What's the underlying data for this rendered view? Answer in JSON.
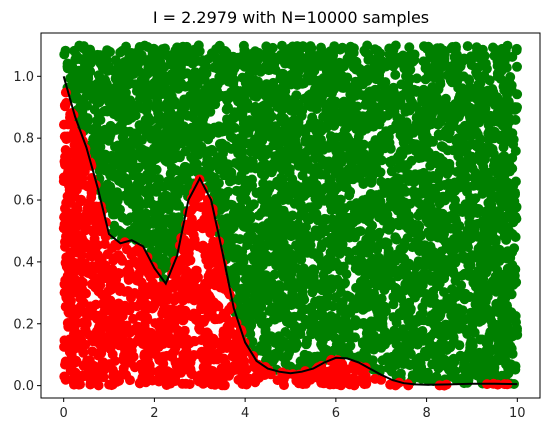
{
  "chart_data": {
    "type": "scatter",
    "title": "I =  2.2979 with N=10000 samples",
    "xlabel": "",
    "ylabel": "",
    "xlim": [
      -0.5,
      10.5
    ],
    "ylim": [
      -0.04,
      1.14
    ],
    "x_ticks": [
      0,
      2,
      4,
      6,
      8,
      10
    ],
    "x_tick_labels": [
      "0",
      "2",
      "4",
      "6",
      "8",
      "10"
    ],
    "y_ticks": [
      0.0,
      0.2,
      0.4,
      0.6,
      0.8,
      1.0
    ],
    "y_tick_labels": [
      "0.0",
      "0.2",
      "0.4",
      "0.6",
      "0.8",
      "1.0"
    ],
    "grid": false,
    "legend": "none",
    "sample_region": {
      "x": [
        0,
        10
      ],
      "y": [
        0,
        1.1
      ]
    },
    "n_samples": 10000,
    "series": [
      {
        "color": "#ff0000",
        "role": "points below curve"
      },
      {
        "color": "#008000",
        "role": "points above curve"
      }
    ],
    "curve": {
      "color": "#000000",
      "x": [
        0.0,
        0.25,
        0.5,
        0.75,
        1.0,
        1.25,
        1.5,
        1.75,
        2.0,
        2.25,
        2.5,
        2.75,
        3.0,
        3.25,
        3.5,
        3.75,
        4.0,
        4.25,
        4.5,
        4.75,
        5.0,
        5.25,
        5.5,
        5.75,
        6.0,
        6.25,
        6.5,
        6.75,
        7.0,
        7.25,
        7.5,
        7.75,
        8.0,
        8.5,
        9.0,
        9.5,
        10.0
      ],
      "y": [
        1.0,
        0.87,
        0.77,
        0.64,
        0.49,
        0.46,
        0.47,
        0.45,
        0.38,
        0.33,
        0.42,
        0.6,
        0.67,
        0.6,
        0.43,
        0.25,
        0.14,
        0.08,
        0.055,
        0.045,
        0.04,
        0.045,
        0.055,
        0.075,
        0.09,
        0.088,
        0.075,
        0.055,
        0.035,
        0.018,
        0.008,
        0.004,
        0.003,
        0.004,
        0.006,
        0.006,
        0.005
      ]
    }
  }
}
